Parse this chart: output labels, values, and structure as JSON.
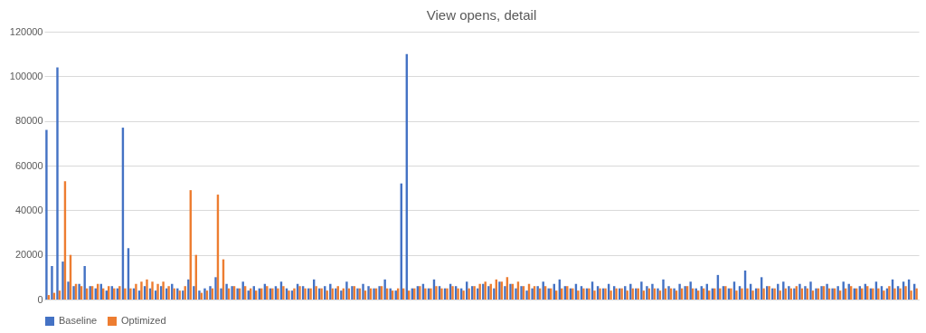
{
  "chart_data": {
    "type": "bar",
    "title": "View opens, detail",
    "categories": [
      null,
      null,
      null,
      null,
      null,
      null,
      null,
      null,
      null,
      null,
      null,
      null,
      null,
      null,
      null,
      null,
      null,
      null,
      null,
      null,
      null,
      null,
      null,
      null,
      null,
      null,
      null,
      null,
      null,
      null,
      null,
      null,
      null,
      null,
      null,
      null,
      null,
      null,
      null,
      null,
      null,
      null,
      null,
      null,
      null,
      null,
      null,
      null,
      null,
      null,
      null,
      null,
      null,
      null,
      null,
      null,
      null,
      null,
      null,
      null,
      null,
      null,
      null,
      null,
      null,
      null,
      null,
      null,
      null,
      null,
      null,
      null,
      null,
      null,
      null,
      null,
      null,
      null,
      null,
      null,
      null,
      null,
      null,
      null,
      null,
      null,
      null,
      null,
      null,
      null,
      null,
      null,
      null,
      null,
      null,
      null,
      null,
      null,
      null,
      null,
      null,
      null,
      null,
      null,
      null,
      null,
      null,
      null,
      null,
      null,
      null,
      null,
      null,
      null,
      null,
      null,
      null,
      null,
      null,
      null,
      null,
      null,
      null,
      null,
      null,
      null,
      null,
      null,
      null,
      null,
      null,
      null,
      null,
      null,
      null,
      null,
      null,
      null,
      null,
      null,
      null,
      null,
      null,
      null,
      null,
      null,
      null,
      null,
      null,
      null,
      null,
      null,
      null,
      null,
      null,
      null,
      null,
      null,
      null,
      null
    ],
    "series": [
      {
        "name": "Baseline",
        "color": "#4472c4",
        "values": [
          76000,
          15000,
          104000,
          17000,
          8000,
          6000,
          7000,
          15000,
          6000,
          5000,
          7000,
          4000,
          6000,
          5000,
          77000,
          23000,
          5000,
          4000,
          6000,
          5000,
          4000,
          6000,
          5000,
          7000,
          5000,
          4000,
          9000,
          6000,
          4000,
          5000,
          6000,
          10000,
          5000,
          7000,
          6000,
          5000,
          8000,
          4000,
          6000,
          5000,
          7000,
          5000,
          6000,
          8000,
          5000,
          4000,
          7000,
          6000,
          5000,
          9000,
          5000,
          6000,
          7000,
          5000,
          4000,
          8000,
          6000,
          5000,
          7000,
          6000,
          5000,
          6000,
          9000,
          5000,
          4000,
          52000,
          110000,
          5000,
          6000,
          7000,
          5000,
          9000,
          6000,
          5000,
          7000,
          6000,
          5000,
          8000,
          6000,
          5000,
          7000,
          6000,
          5000,
          8000,
          6000,
          7000,
          5000,
          6000,
          4000,
          5000,
          6000,
          8000,
          5000,
          7000,
          9000,
          6000,
          5000,
          7000,
          6000,
          5000,
          8000,
          6000,
          5000,
          7000,
          6000,
          5000,
          6000,
          7000,
          5000,
          8000,
          6000,
          7000,
          5000,
          9000,
          6000,
          5000,
          7000,
          6000,
          8000,
          5000,
          6000,
          7000,
          5000,
          11000,
          6000,
          5000,
          8000,
          6000,
          13000,
          7000,
          5000,
          10000,
          6000,
          5000,
          7000,
          8000,
          6000,
          5000,
          7000,
          6000,
          8000,
          5000,
          6000,
          7000,
          5000,
          6000,
          8000,
          7000,
          5000,
          6000,
          7000,
          5000,
          8000,
          6000,
          5000,
          9000,
          6000,
          8000,
          9000,
          7000
        ]
      },
      {
        "name": "Optimized",
        "color": "#ed7d31",
        "values": [
          2000,
          3000,
          4000,
          53000,
          20000,
          7000,
          6000,
          5000,
          6000,
          7000,
          5000,
          6000,
          5000,
          6000,
          5000,
          5000,
          7000,
          8000,
          9000,
          8000,
          7000,
          8000,
          6000,
          5000,
          4000,
          6000,
          49000,
          20000,
          3000,
          4000,
          5000,
          47000,
          18000,
          5000,
          6000,
          5000,
          6000,
          5000,
          4000,
          5000,
          6000,
          5000,
          5000,
          6000,
          4000,
          5000,
          6000,
          5000,
          5000,
          6000,
          5000,
          4000,
          5000,
          6000,
          5000,
          5000,
          6000,
          5000,
          4000,
          5000,
          5000,
          6000,
          5000,
          4000,
          5000,
          5000,
          4000,
          5000,
          6000,
          5000,
          5000,
          6000,
          5000,
          5000,
          6000,
          5000,
          4000,
          5000,
          6000,
          7000,
          8000,
          7000,
          9000,
          8000,
          10000,
          7000,
          8000,
          6000,
          7000,
          6000,
          5000,
          6000,
          5000,
          4000,
          5000,
          6000,
          5000,
          4000,
          5000,
          5000,
          4000,
          5000,
          5000,
          4000,
          5000,
          5000,
          4000,
          5000,
          5000,
          4000,
          5000,
          5000,
          4000,
          5000,
          5000,
          4000,
          5000,
          6000,
          5000,
          4000,
          5000,
          4000,
          5000,
          5000,
          6000,
          5000,
          4000,
          5000,
          5000,
          4000,
          5000,
          5000,
          6000,
          5000,
          4000,
          5000,
          5000,
          6000,
          5000,
          5000,
          4000,
          5000,
          6000,
          5000,
          5000,
          4000,
          5000,
          6000,
          5000,
          5000,
          6000,
          5000,
          5000,
          4000,
          6000,
          5000,
          5000,
          6000,
          4000,
          5000
        ]
      }
    ],
    "ylim": [
      0,
      120000
    ],
    "yticks": [
      0,
      20000,
      40000,
      60000,
      80000,
      100000,
      120000
    ],
    "grid": "y",
    "legend": "bottom",
    "tick_labels": "y"
  }
}
